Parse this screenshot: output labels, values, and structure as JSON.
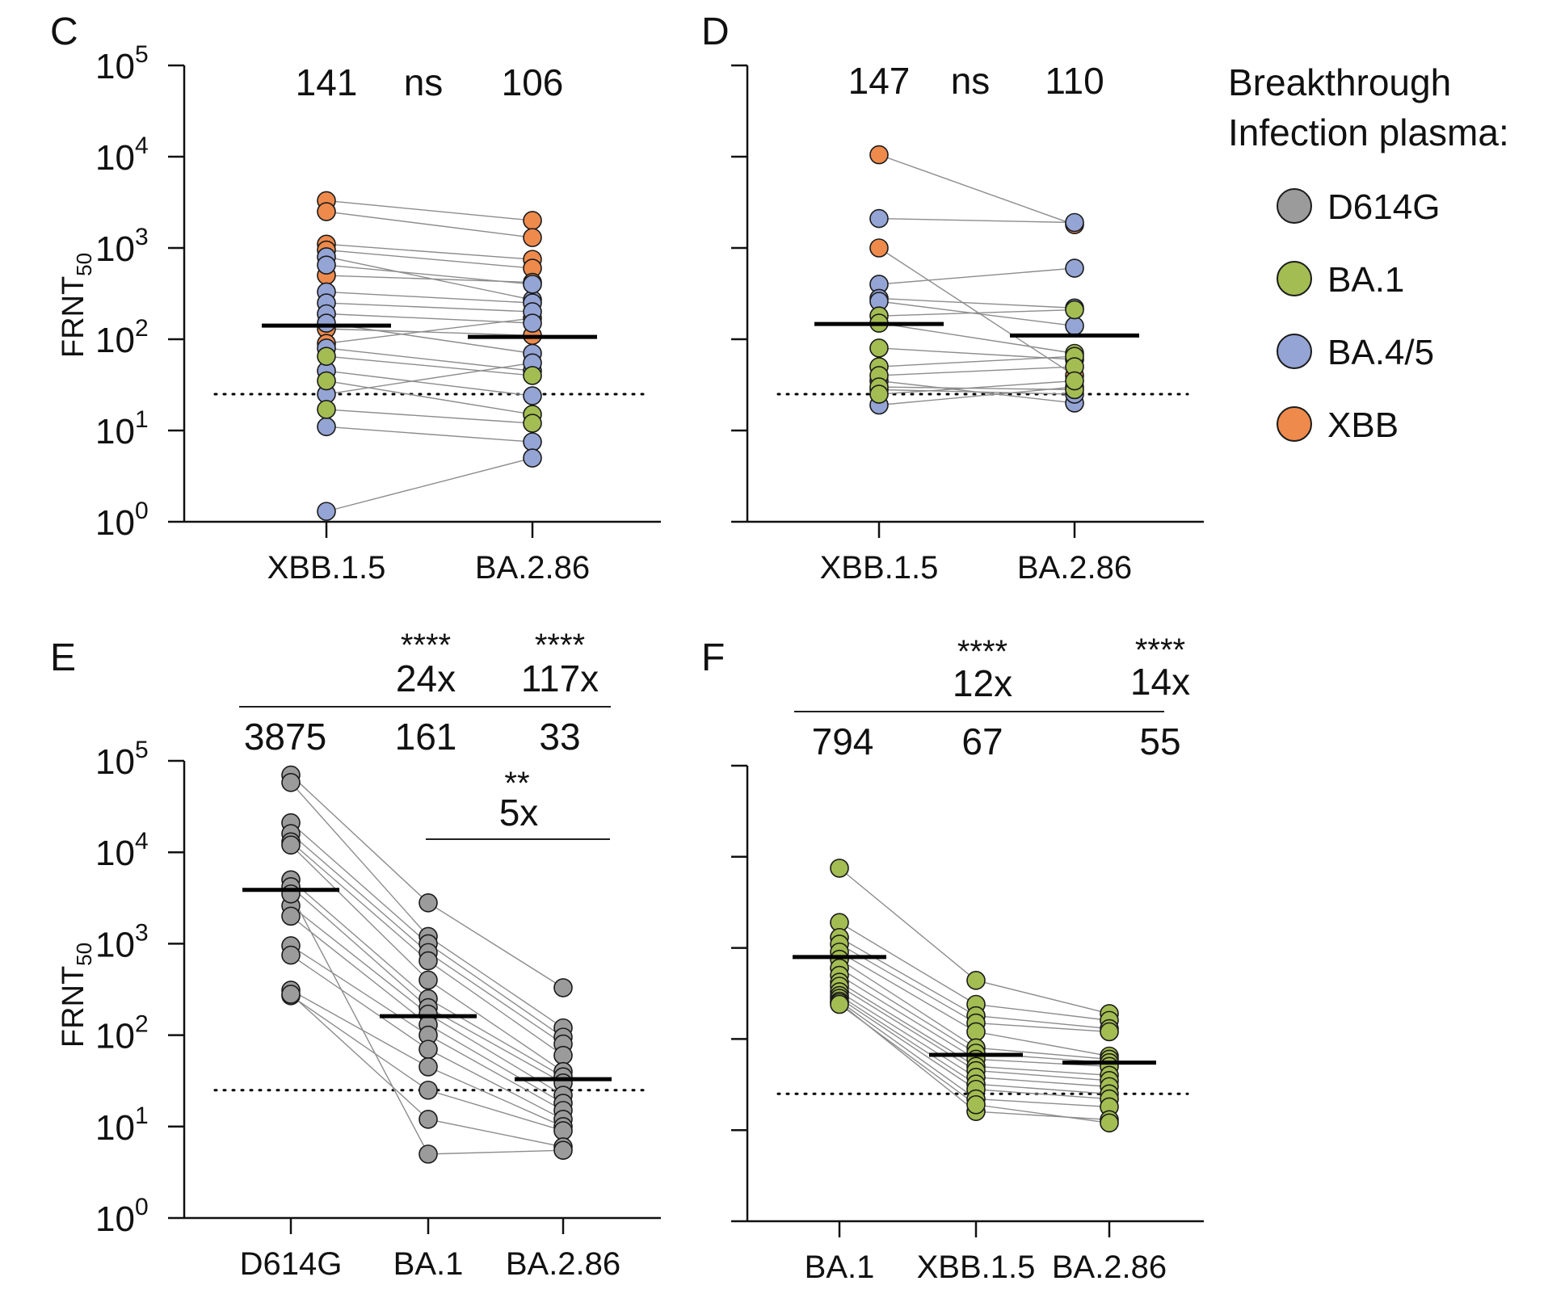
{
  "colors": {
    "D614G": "#9b9b9b",
    "BA.1": "#a3bd52",
    "BA.4/5": "#94a4d4",
    "XBB": "#ee8a4c"
  },
  "legend": {
    "title_line1": "Breakthrough",
    "title_line2": "Infection plasma:",
    "items": [
      {
        "label": "D614G",
        "color": "#9b9b9b",
        "icon": "circle"
      },
      {
        "label": "BA.1",
        "color": "#a3bd52",
        "icon": "circle"
      },
      {
        "label": "BA.4/5",
        "color": "#94a4d4",
        "icon": "circle"
      },
      {
        "label": "XBB",
        "color": "#ee8a4c",
        "icon": "circle"
      }
    ]
  },
  "chart_data": [
    {
      "panel": "C",
      "type": "scatter",
      "ylabel": "FRNT",
      "ylabel_sub": "50",
      "yscale": "log10",
      "ylim": [
        1,
        100000
      ],
      "ytick_exponents": [
        "0",
        "1",
        "2",
        "3",
        "4",
        "5"
      ],
      "show_tick_labels": true,
      "categories": [
        "XBB.1.5",
        "BA.2.86"
      ],
      "medians": [
        141,
        106
      ],
      "limit_of_detection": 25,
      "top_labels": [
        "141",
        "ns",
        "106"
      ],
      "pairs": [
        {
          "group": "XBB",
          "values": [
            3300,
            2000
          ]
        },
        {
          "group": "XBB",
          "values": [
            2500,
            1300
          ]
        },
        {
          "group": "XBB",
          "values": [
            1100,
            750
          ]
        },
        {
          "group": "XBB",
          "values": [
            950,
            600
          ]
        },
        {
          "group": "XBB",
          "values": [
            500,
            420
          ]
        },
        {
          "group": "XBB",
          "values": [
            130,
            110
          ]
        },
        {
          "group": "XBB",
          "values": [
            90,
            170
          ]
        },
        {
          "group": "BA.4/5",
          "values": [
            800,
            270
          ]
        },
        {
          "group": "BA.4/5",
          "values": [
            650,
            400
          ]
        },
        {
          "group": "BA.4/5",
          "values": [
            330,
            250
          ]
        },
        {
          "group": "BA.4/5",
          "values": [
            250,
            200
          ]
        },
        {
          "group": "BA.4/5",
          "values": [
            190,
            150
          ]
        },
        {
          "group": "BA.4/5",
          "values": [
            150,
            70
          ]
        },
        {
          "group": "BA.4/5",
          "values": [
            80,
            45
          ]
        },
        {
          "group": "BA.4/5",
          "values": [
            45,
            24
          ]
        },
        {
          "group": "BA.4/5",
          "values": [
            25,
            55
          ]
        },
        {
          "group": "BA.4/5",
          "values": [
            11,
            7.5
          ]
        },
        {
          "group": "BA.4/5",
          "values": [
            1.3,
            5
          ]
        },
        {
          "group": "BA.1",
          "values": [
            65,
            40
          ]
        },
        {
          "group": "BA.1",
          "values": [
            35,
            15
          ]
        },
        {
          "group": "BA.1",
          "values": [
            17,
            12
          ]
        }
      ],
      "comparisons": []
    },
    {
      "panel": "D",
      "type": "scatter",
      "ylabel": "",
      "ylabel_sub": "",
      "yscale": "log10",
      "ylim": [
        1,
        100000
      ],
      "ytick_exponents": [
        "0",
        "1",
        "2",
        "3",
        "4",
        "5"
      ],
      "show_tick_labels": false,
      "categories": [
        "XBB.1.5",
        "BA.2.86"
      ],
      "medians": [
        147,
        110
      ],
      "limit_of_detection": 25,
      "top_labels": [
        "147",
        "ns",
        "110"
      ],
      "pairs": [
        {
          "group": "XBB",
          "values": [
            10500,
            1800
          ]
        },
        {
          "group": "XBB",
          "values": [
            1000,
            40
          ]
        },
        {
          "group": "BA.4/5",
          "values": [
            2100,
            1900
          ]
        },
        {
          "group": "BA.4/5",
          "values": [
            400,
            600
          ]
        },
        {
          "group": "BA.4/5",
          "values": [
            280,
            220
          ]
        },
        {
          "group": "BA.4/5",
          "values": [
            260,
            140
          ]
        },
        {
          "group": "BA.4/5",
          "values": [
            35,
            20
          ]
        },
        {
          "group": "BA.4/5",
          "values": [
            28,
            25
          ]
        },
        {
          "group": "BA.4/5",
          "values": [
            19,
            30
          ]
        },
        {
          "group": "BA.1",
          "values": [
            180,
            210
          ]
        },
        {
          "group": "BA.1",
          "values": [
            150,
            70
          ]
        },
        {
          "group": "BA.1",
          "values": [
            80,
            60
          ]
        },
        {
          "group": "BA.1",
          "values": [
            50,
            65
          ]
        },
        {
          "group": "BA.1",
          "values": [
            40,
            50
          ]
        },
        {
          "group": "BA.1",
          "values": [
            30,
            28
          ]
        },
        {
          "group": "BA.1",
          "values": [
            25,
            35
          ]
        }
      ],
      "comparisons": []
    },
    {
      "panel": "E",
      "type": "scatter",
      "ylabel": "FRNT",
      "ylabel_sub": "50",
      "yscale": "log10",
      "ylim": [
        1,
        100000
      ],
      "ytick_exponents": [
        "0",
        "1",
        "2",
        "3",
        "4",
        "5"
      ],
      "show_tick_labels": true,
      "categories": [
        "D614G",
        "BA.1",
        "BA.2.86"
      ],
      "medians": [
        3875,
        161,
        33
      ],
      "limit_of_detection": 25,
      "top_labels": [
        "3875",
        "161",
        "33"
      ],
      "pairs": [
        {
          "group": "D614G",
          "values": [
            70000,
            2800,
            330
          ]
        },
        {
          "group": "D614G",
          "values": [
            58000,
            1200,
            120
          ]
        },
        {
          "group": "D614G",
          "values": [
            21000,
            1000,
            95
          ]
        },
        {
          "group": "D614G",
          "values": [
            16000,
            800,
            80
          ]
        },
        {
          "group": "D614G",
          "values": [
            13000,
            650,
            60
          ]
        },
        {
          "group": "D614G",
          "values": [
            12000,
            400,
            40
          ]
        },
        {
          "group": "D614G",
          "values": [
            5000,
            250,
            35
          ]
        },
        {
          "group": "D614G",
          "values": [
            4200,
            200,
            30
          ]
        },
        {
          "group": "D614G",
          "values": [
            2600,
            170,
            22
          ]
        },
        {
          "group": "D614G",
          "values": [
            2000,
            130,
            18
          ]
        },
        {
          "group": "D614G",
          "values": [
            950,
            100,
            15
          ]
        },
        {
          "group": "D614G",
          "values": [
            750,
            70,
            12
          ]
        },
        {
          "group": "D614G",
          "values": [
            310,
            45,
            10
          ]
        },
        {
          "group": "D614G",
          "values": [
            270,
            25,
            9
          ]
        },
        {
          "group": "D614G",
          "values": [
            280,
            12,
            6
          ]
        },
        {
          "group": "D614G",
          "values": [
            3500,
            5,
            5.5
          ]
        }
      ],
      "comparisons": [
        {
          "stars": "****",
          "fold": "24x"
        },
        {
          "stars": "****",
          "fold": "117x"
        },
        {
          "stars": "**",
          "fold": "5x"
        }
      ]
    },
    {
      "panel": "F",
      "type": "scatter",
      "ylabel": "",
      "ylabel_sub": "",
      "yscale": "log10",
      "ylim": [
        1,
        100000
      ],
      "ytick_exponents": [
        "0",
        "1",
        "2",
        "3",
        "4",
        "5"
      ],
      "show_tick_labels": false,
      "categories": [
        "BA.1",
        "XBB.1.5",
        "BA.2.86"
      ],
      "medians": [
        794,
        67,
        55
      ],
      "limit_of_detection": 25,
      "top_labels": [
        "794",
        "67",
        "55"
      ],
      "pairs": [
        {
          "group": "BA.1",
          "values": [
            7500,
            440,
            190
          ]
        },
        {
          "group": "BA.1",
          "values": [
            1900,
            240,
            160
          ]
        },
        {
          "group": "BA.1",
          "values": [
            1300,
            180,
            130
          ]
        },
        {
          "group": "BA.1",
          "values": [
            1100,
            150,
            120
          ]
        },
        {
          "group": "BA.1",
          "values": [
            900,
            120,
            65
          ]
        },
        {
          "group": "BA.1",
          "values": [
            750,
            80,
            60
          ]
        },
        {
          "group": "BA.1",
          "values": [
            600,
            70,
            55
          ]
        },
        {
          "group": "BA.1",
          "values": [
            500,
            60,
            50
          ]
        },
        {
          "group": "BA.1",
          "values": [
            420,
            50,
            40
          ]
        },
        {
          "group": "BA.1",
          "values": [
            380,
            45,
            35
          ]
        },
        {
          "group": "BA.1",
          "values": [
            330,
            38,
            30
          ]
        },
        {
          "group": "BA.1",
          "values": [
            300,
            32,
            25
          ]
        },
        {
          "group": "BA.1",
          "values": [
            280,
            28,
            22
          ]
        },
        {
          "group": "BA.1",
          "values": [
            260,
            22,
            18
          ]
        },
        {
          "group": "BA.1",
          "values": [
            250,
            16,
            13
          ]
        },
        {
          "group": "BA.1",
          "values": [
            240,
            19,
            12
          ]
        }
      ],
      "comparisons": [
        {
          "stars": "****",
          "fold": "12x"
        },
        {
          "stars": "****",
          "fold": "14x"
        }
      ]
    }
  ]
}
